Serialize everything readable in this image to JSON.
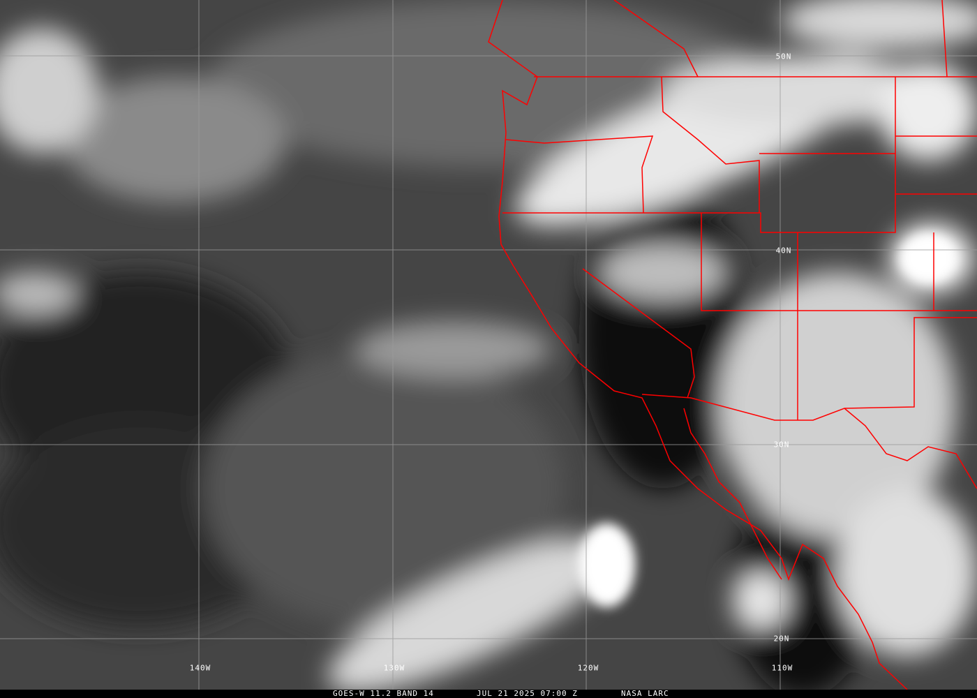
{
  "image": {
    "satellite_product": "GOES-W 11.2 BAND 14",
    "datetime": "JUL 21 2025 07:00 Z",
    "credit": "NASA LARC",
    "imagery": "grayscale infrared satellite image of the eastern Pacific and western North America",
    "border_color": "#ff0000",
    "grid_color": "#9a9a9a"
  },
  "grid": {
    "latitude_labels": [
      "50N",
      "40N",
      "30N",
      "20N"
    ],
    "longitude_labels": [
      "140W",
      "130W",
      "120W",
      "110W"
    ]
  }
}
